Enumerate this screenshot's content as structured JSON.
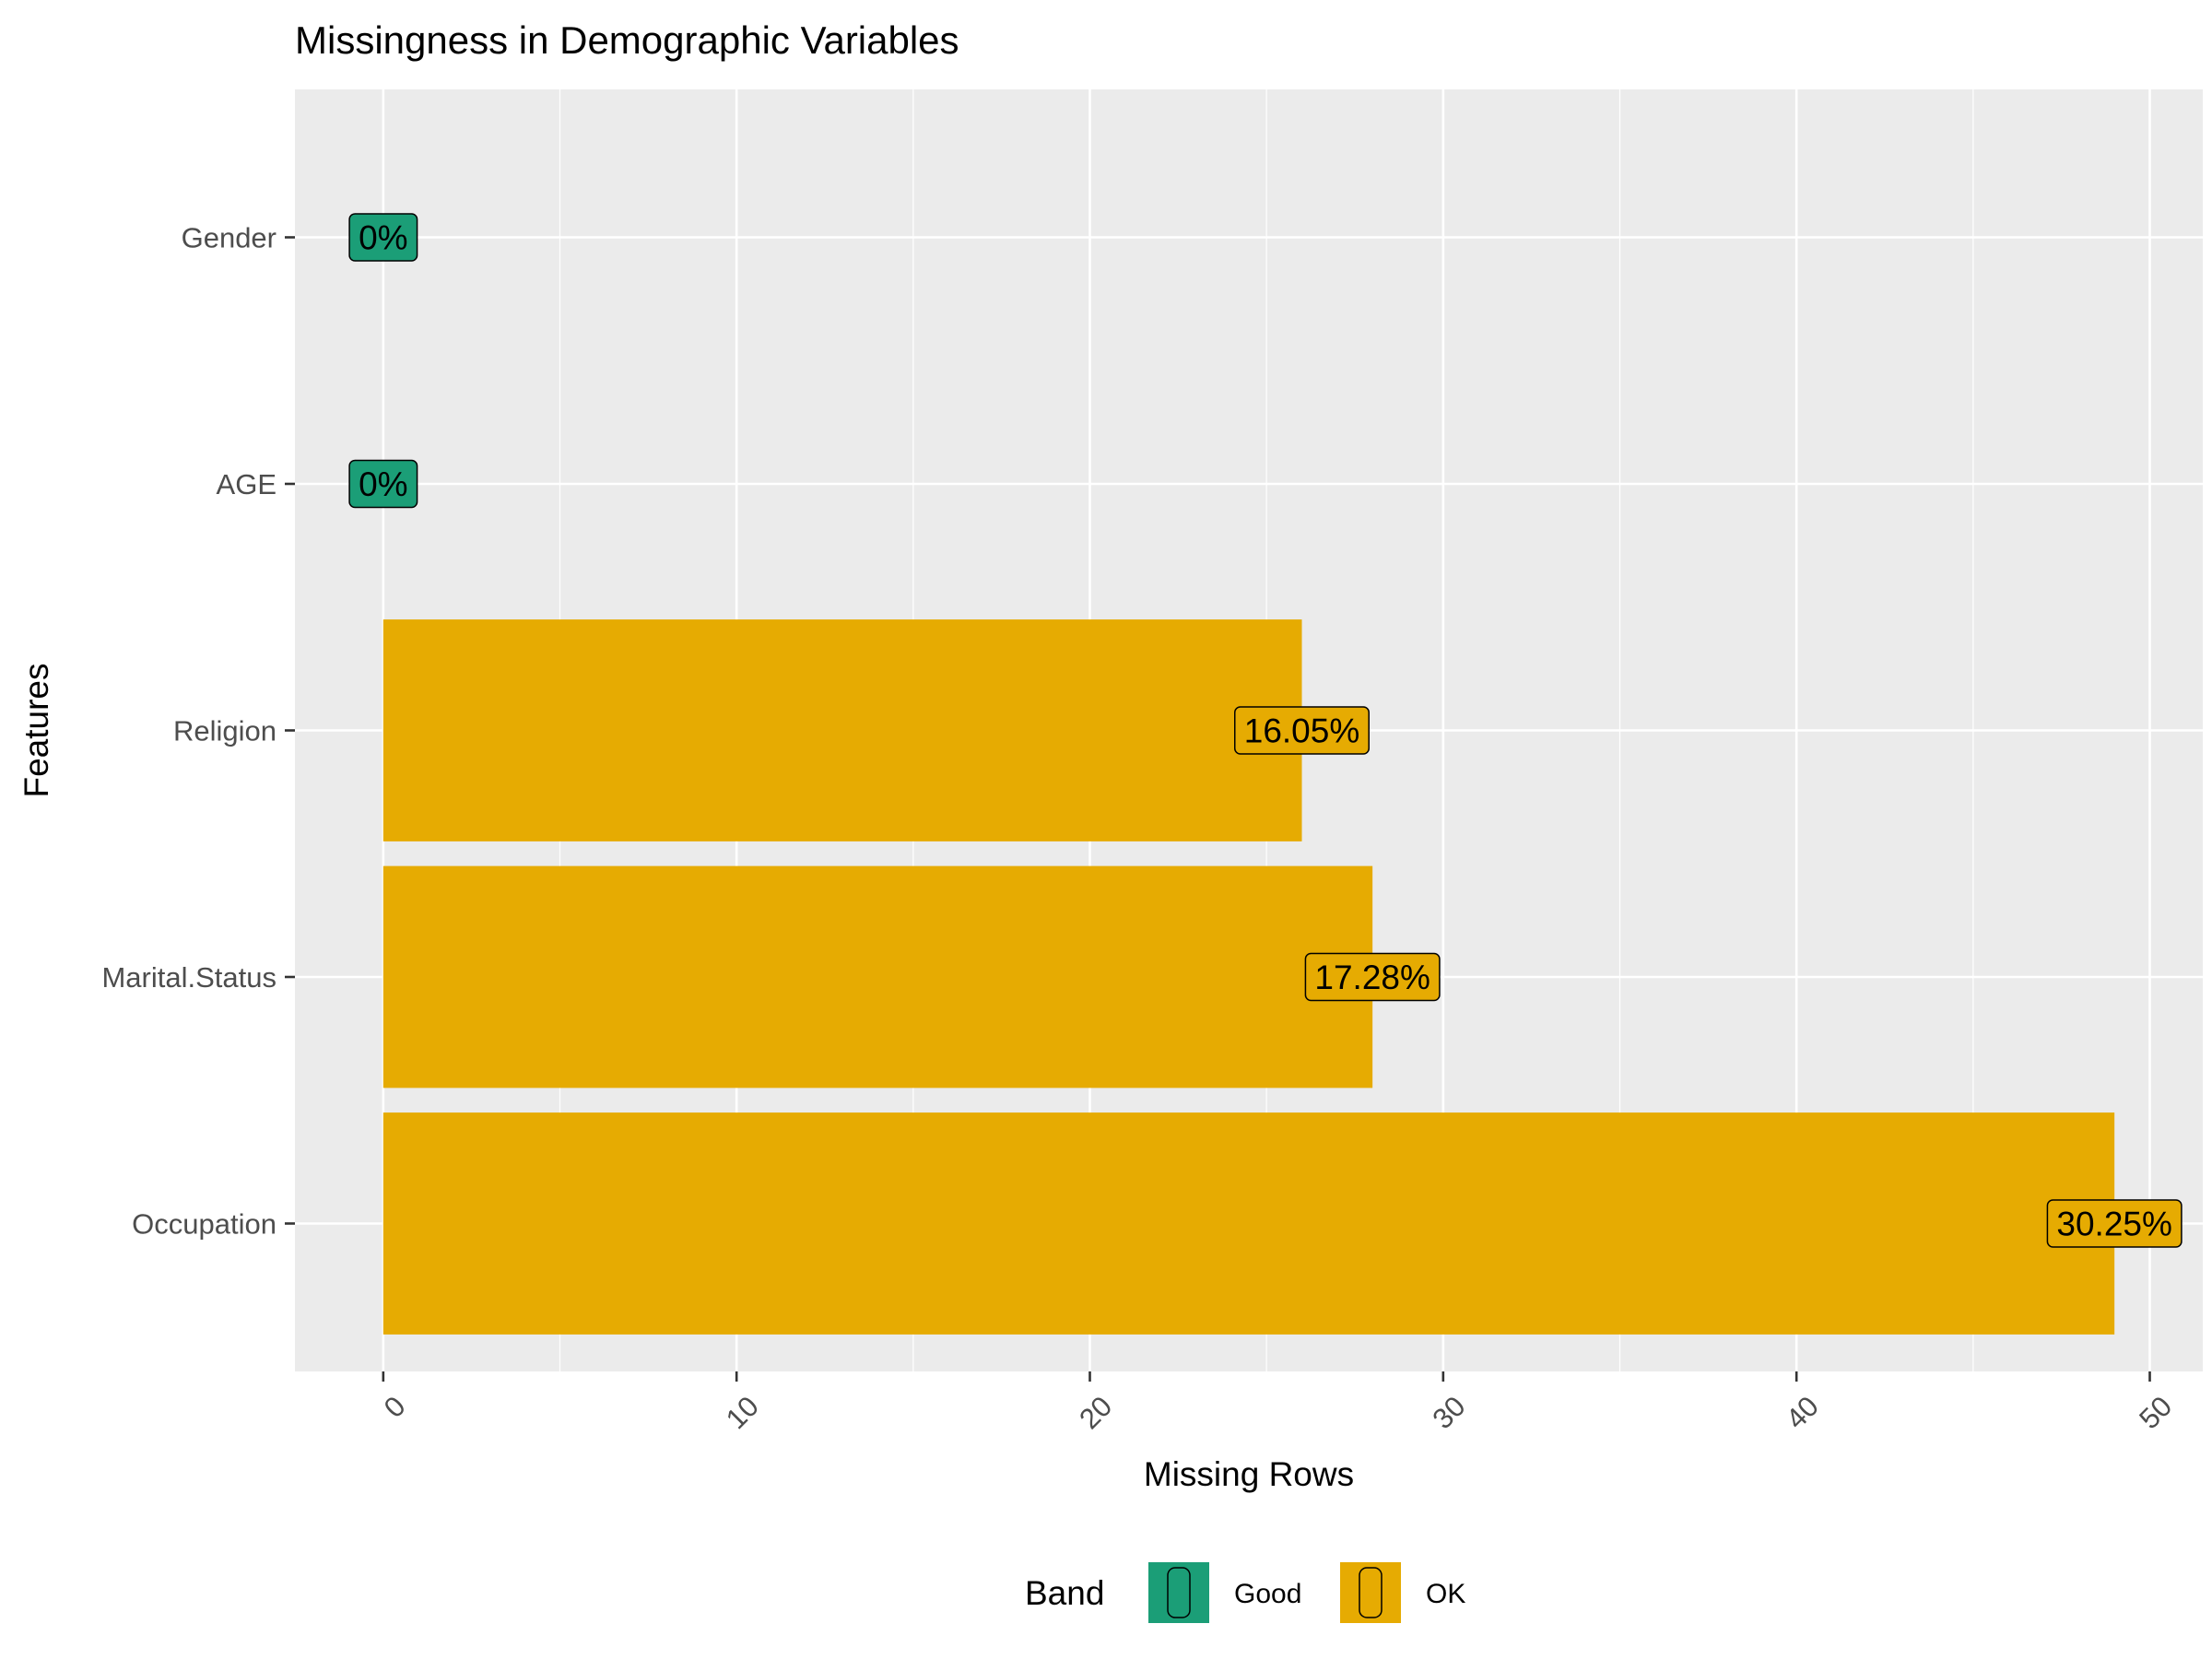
{
  "chart_data": {
    "type": "bar",
    "orientation": "horizontal",
    "title": "Missingness in Demographic Variables",
    "xlabel": "Missing Rows",
    "ylabel": "Features",
    "xlim": [
      -2.5,
      51.5
    ],
    "x_ticks": [
      0,
      10,
      20,
      30,
      40,
      50
    ],
    "x_tick_labels": [
      "0",
      "10",
      "20",
      "30",
      "40",
      "50"
    ],
    "categories": [
      "Gender",
      "AGE",
      "Religion",
      "Marital.Status",
      "Occupation"
    ],
    "values": [
      0,
      0,
      26,
      28,
      49
    ],
    "labels": [
      "0%",
      "0%",
      "16.05%",
      "17.28%",
      "30.25%"
    ],
    "band": [
      "Good",
      "Good",
      "OK",
      "OK",
      "OK"
    ],
    "legend": {
      "title": "Band",
      "placement": "bottom",
      "items": [
        {
          "name": "Good",
          "color": "#1b9e77"
        },
        {
          "name": "OK",
          "color": "#e6ab02"
        }
      ]
    },
    "colors": {
      "Good": "#1b9e77",
      "OK": "#e6ab02"
    },
    "grid": true,
    "panel_background": "#ebebeb"
  }
}
